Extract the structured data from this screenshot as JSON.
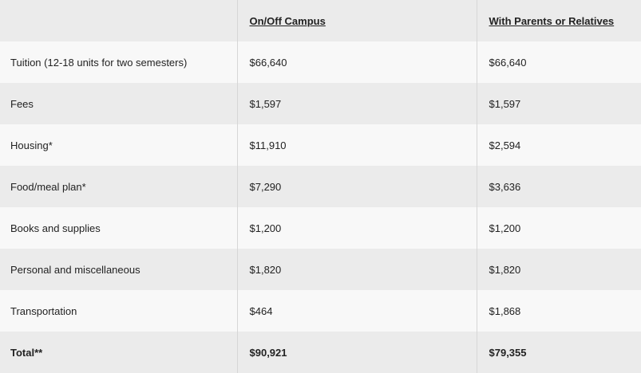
{
  "headers": [
    "",
    "On/Off Campus",
    "With Parents or Relatives"
  ],
  "rows": [
    [
      "Tuition (12-18 units for two semesters)",
      "$66,640",
      "$66,640"
    ],
    [
      "Fees",
      "$1,597",
      "$1,597"
    ],
    [
      "Housing*",
      "$11,910",
      "$2,594"
    ],
    [
      "Food/meal plan*",
      "$7,290",
      "$3,636"
    ],
    [
      "Books and supplies",
      "$1,200",
      "$1,200"
    ],
    [
      "Personal and miscellaneous",
      "$1,820",
      "$1,820"
    ],
    [
      "Transportation",
      "$464",
      "$1,868"
    ]
  ],
  "total": [
    "Total**",
    "$90,921",
    "$79,355"
  ]
}
